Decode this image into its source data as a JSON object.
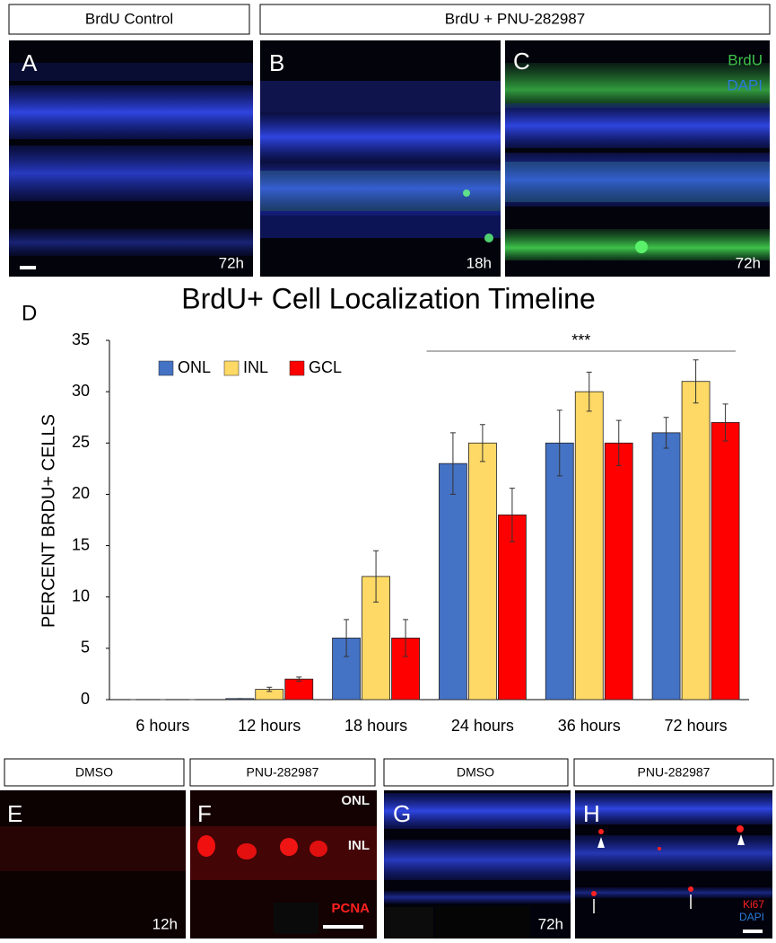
{
  "top": {
    "headers": [
      "BrdU Control",
      "BrdU + PNU-282987"
    ],
    "panels": [
      {
        "label": "A",
        "time": "72h"
      },
      {
        "label": "B",
        "time": "18h"
      },
      {
        "label": "C",
        "time": "72h",
        "stains": [
          "BrdU",
          "DAPI"
        ]
      }
    ]
  },
  "chart_data": {
    "type": "bar",
    "panel_label": "D",
    "title": "BrdU+ Cell Localization Timeline",
    "y_label": "PERCENT BRDU+ CELLS",
    "categories": [
      "6 hours",
      "12 hours",
      "18 hours",
      "24 hours",
      "36 hours",
      "72 hours"
    ],
    "series": [
      {
        "name": "ONL",
        "color": "#4472c4",
        "values": [
          0,
          0.1,
          6,
          23,
          25,
          26
        ],
        "errors": [
          0,
          0,
          1.8,
          3,
          3.2,
          1.5
        ]
      },
      {
        "name": "INL",
        "color": "#ffd966",
        "values": [
          0,
          1,
          12,
          25,
          30,
          31
        ],
        "errors": [
          0,
          0.2,
          2.5,
          1.8,
          1.9,
          2.1
        ]
      },
      {
        "name": "GCL",
        "color": "#ff0000",
        "values": [
          0,
          2,
          6,
          18,
          25,
          27
        ],
        "errors": [
          0,
          0.2,
          1.8,
          2.6,
          2.2,
          1.8
        ]
      }
    ],
    "ylim": [
      0,
      35
    ],
    "yticks": [
      0,
      5,
      10,
      15,
      20,
      25,
      30,
      35
    ],
    "annotation": "***",
    "legend": "top-left"
  },
  "bottom": {
    "headers": [
      "DMSO",
      "PNU-282987",
      "DMSO",
      "PNU-282987"
    ],
    "panels": [
      {
        "label": "E",
        "time": "12h"
      },
      {
        "label": "F",
        "layers": [
          "ONL",
          "INL"
        ],
        "stain": "PCNA"
      },
      {
        "label": "G",
        "time": "72h"
      },
      {
        "label": "H",
        "stains": [
          "Ki67",
          "DAPI"
        ]
      }
    ]
  }
}
